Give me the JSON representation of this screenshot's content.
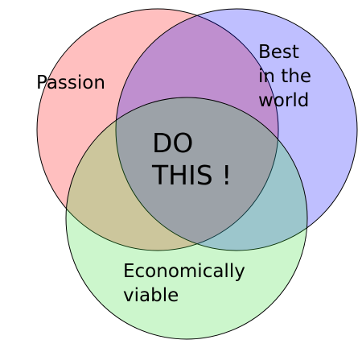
{
  "diagram": {
    "sets": [
      {
        "id": "passion",
        "lines": [
          "Passion"
        ],
        "fill": "#ff0000"
      },
      {
        "id": "best",
        "lines": [
          "Best",
          "in the",
          "world"
        ],
        "fill": "#0000ff"
      },
      {
        "id": "econ",
        "lines": [
          "Economically",
          "viable"
        ],
        "fill": "#33dd33"
      }
    ],
    "center_lines": [
      "DO",
      "THIS !"
    ],
    "fill_opacity": 0.25,
    "stroke_color": "#000000"
  }
}
